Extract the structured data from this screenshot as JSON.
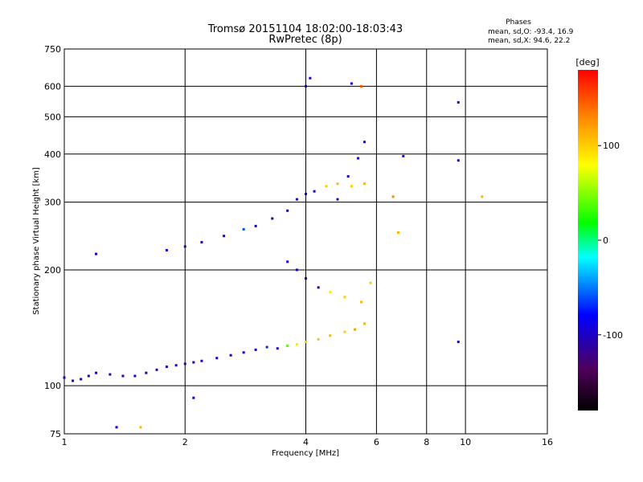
{
  "chart_data": {
    "type": "scatter",
    "title": "Tromsø 20151104 18:02:00-18:03:43",
    "subtitle": "RwPretec (8p)",
    "xlabel": "Frequency [MHz]",
    "ylabel": "Stationary phase Virtual Height [km]",
    "x_scale": "log",
    "y_scale": "log",
    "xlim": [
      1,
      16
    ],
    "ylim": [
      75,
      750
    ],
    "x_ticks": [
      1,
      2,
      4,
      6,
      8,
      10,
      16
    ],
    "x_tick_labels": [
      "1",
      "2",
      "4",
      "6",
      "8",
      "10",
      "16"
    ],
    "x_grid": [
      1,
      2,
      4,
      6,
      8,
      10,
      16
    ],
    "y_ticks": [
      75,
      100,
      200,
      300,
      400,
      500,
      600,
      750
    ],
    "y_tick_labels": [
      "75",
      "100",
      "200",
      "300",
      "400",
      "500",
      "600",
      "750"
    ],
    "y_grid": [
      100,
      200,
      300,
      400,
      500,
      600,
      750
    ],
    "grid": true,
    "phase_stats": {
      "heading": "Phases",
      "line_o": "mean, sd,O: -93.4, 16.9",
      "line_x": "mean, sd,X:  94.6, 22.2"
    },
    "colorbar": {
      "label": "[deg]",
      "range": [
        -180,
        180
      ],
      "ticks": [
        100,
        0,
        -100
      ],
      "tick_labels": [
        "100",
        "0",
        "-100"
      ],
      "colormap": "rainbow (black -> purple -> blue -> cyan -> green -> yellow -> orange -> red)"
    },
    "series": [
      {
        "points": [
          [
            1.0,
            105,
            -100
          ],
          [
            1.05,
            103,
            -105
          ],
          [
            1.1,
            104,
            -95
          ],
          [
            1.15,
            106,
            -110
          ],
          [
            1.2,
            108,
            -100
          ],
          [
            1.3,
            107,
            -98
          ],
          [
            1.4,
            106,
            -102
          ],
          [
            1.5,
            106,
            -100
          ],
          [
            1.6,
            108,
            -96
          ],
          [
            1.7,
            110,
            -104
          ],
          [
            1.8,
            112,
            -100
          ],
          [
            1.9,
            113,
            -98
          ],
          [
            2.0,
            114,
            -100
          ],
          [
            2.1,
            115,
            -102
          ],
          [
            2.2,
            116,
            -95
          ],
          [
            2.4,
            118,
            -100
          ],
          [
            2.6,
            120,
            -90
          ],
          [
            2.8,
            122,
            -85
          ],
          [
            3.0,
            124,
            -100
          ],
          [
            3.2,
            126,
            -70
          ],
          [
            3.4,
            125,
            -100
          ],
          [
            3.6,
            127,
            40
          ],
          [
            3.8,
            128,
            90
          ],
          [
            4.0,
            130,
            100
          ],
          [
            4.3,
            132,
            105
          ],
          [
            4.6,
            135,
            110
          ],
          [
            5.0,
            138,
            100
          ],
          [
            5.3,
            140,
            120
          ],
          [
            5.6,
            145,
            110
          ],
          [
            1.2,
            220,
            -100
          ],
          [
            1.8,
            225,
            -100
          ],
          [
            2.0,
            230,
            -100
          ],
          [
            2.2,
            236,
            -100
          ],
          [
            2.5,
            245,
            -90
          ],
          [
            2.8,
            255,
            -60
          ],
          [
            3.0,
            260,
            -100
          ],
          [
            3.3,
            272,
            -100
          ],
          [
            3.6,
            285,
            -100
          ],
          [
            3.8,
            305,
            -100
          ],
          [
            4.0,
            315,
            -100
          ],
          [
            4.2,
            320,
            -100
          ],
          [
            4.5,
            330,
            100
          ],
          [
            4.8,
            335,
            110
          ],
          [
            5.2,
            330,
            100
          ],
          [
            5.6,
            335,
            110
          ],
          [
            4.8,
            305,
            -100
          ],
          [
            5.1,
            350,
            -100
          ],
          [
            5.4,
            390,
            -100
          ],
          [
            5.6,
            430,
            -100
          ],
          [
            4.0,
            600,
            -100
          ],
          [
            4.1,
            630,
            -100
          ],
          [
            5.2,
            610,
            -100
          ],
          [
            5.5,
            600,
            150
          ],
          [
            3.6,
            210,
            -100
          ],
          [
            3.8,
            200,
            -100
          ],
          [
            4.0,
            190,
            -100
          ],
          [
            4.3,
            180,
            -100
          ],
          [
            4.6,
            175,
            90
          ],
          [
            5.0,
            170,
            100
          ],
          [
            5.5,
            165,
            110
          ],
          [
            5.8,
            185,
            100
          ],
          [
            7.0,
            395,
            -90
          ],
          [
            9.6,
            545,
            -100
          ],
          [
            9.6,
            385,
            -100
          ],
          [
            9.6,
            130,
            -100
          ],
          [
            11.0,
            310,
            110
          ],
          [
            6.6,
            310,
            130
          ],
          [
            6.8,
            250,
            110
          ],
          [
            1.35,
            78,
            -100
          ],
          [
            1.55,
            78,
            110
          ],
          [
            2.1,
            93,
            -100
          ]
        ]
      }
    ]
  }
}
